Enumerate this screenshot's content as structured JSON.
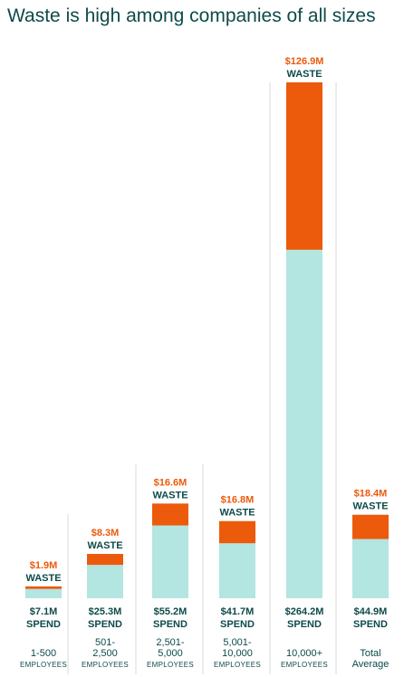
{
  "title": "Waste is high among companies of all sizes",
  "colors": {
    "spend": "#b3e5e1",
    "waste": "#ec5a0c",
    "text_dark": "#0e4a4a",
    "divider": "#d9d9d9"
  },
  "chart_data": {
    "type": "bar",
    "stacked": true,
    "categories": [
      [
        "1-500",
        "EMPLOYEES"
      ],
      [
        "501-",
        "2,500",
        "EMPLOYEES"
      ],
      [
        "2,501-",
        "5,000",
        "EMPLOYEES"
      ],
      [
        "5,001-",
        "10,000",
        "EMPLOYEES"
      ],
      [
        "10,000+",
        "EMPLOYEES"
      ],
      [
        "Total",
        "Average"
      ]
    ],
    "series": [
      {
        "name": "SPEND",
        "values": [
          7.1,
          25.3,
          55.2,
          41.7,
          264.2,
          44.9
        ],
        "labels": [
          "$7.1M",
          "$25.3M",
          "$55.2M",
          "$41.7M",
          "$264.2M",
          "$44.9M"
        ]
      },
      {
        "name": "WASTE",
        "values": [
          1.9,
          8.3,
          16.6,
          16.8,
          126.9,
          18.4
        ],
        "labels": [
          "$1.9M",
          "$8.3M",
          "$16.6M",
          "$16.8M",
          "$126.9M",
          "$18.4M"
        ]
      }
    ],
    "ylim": [
      0,
      391.1
    ],
    "grid": false,
    "legend": "none"
  }
}
